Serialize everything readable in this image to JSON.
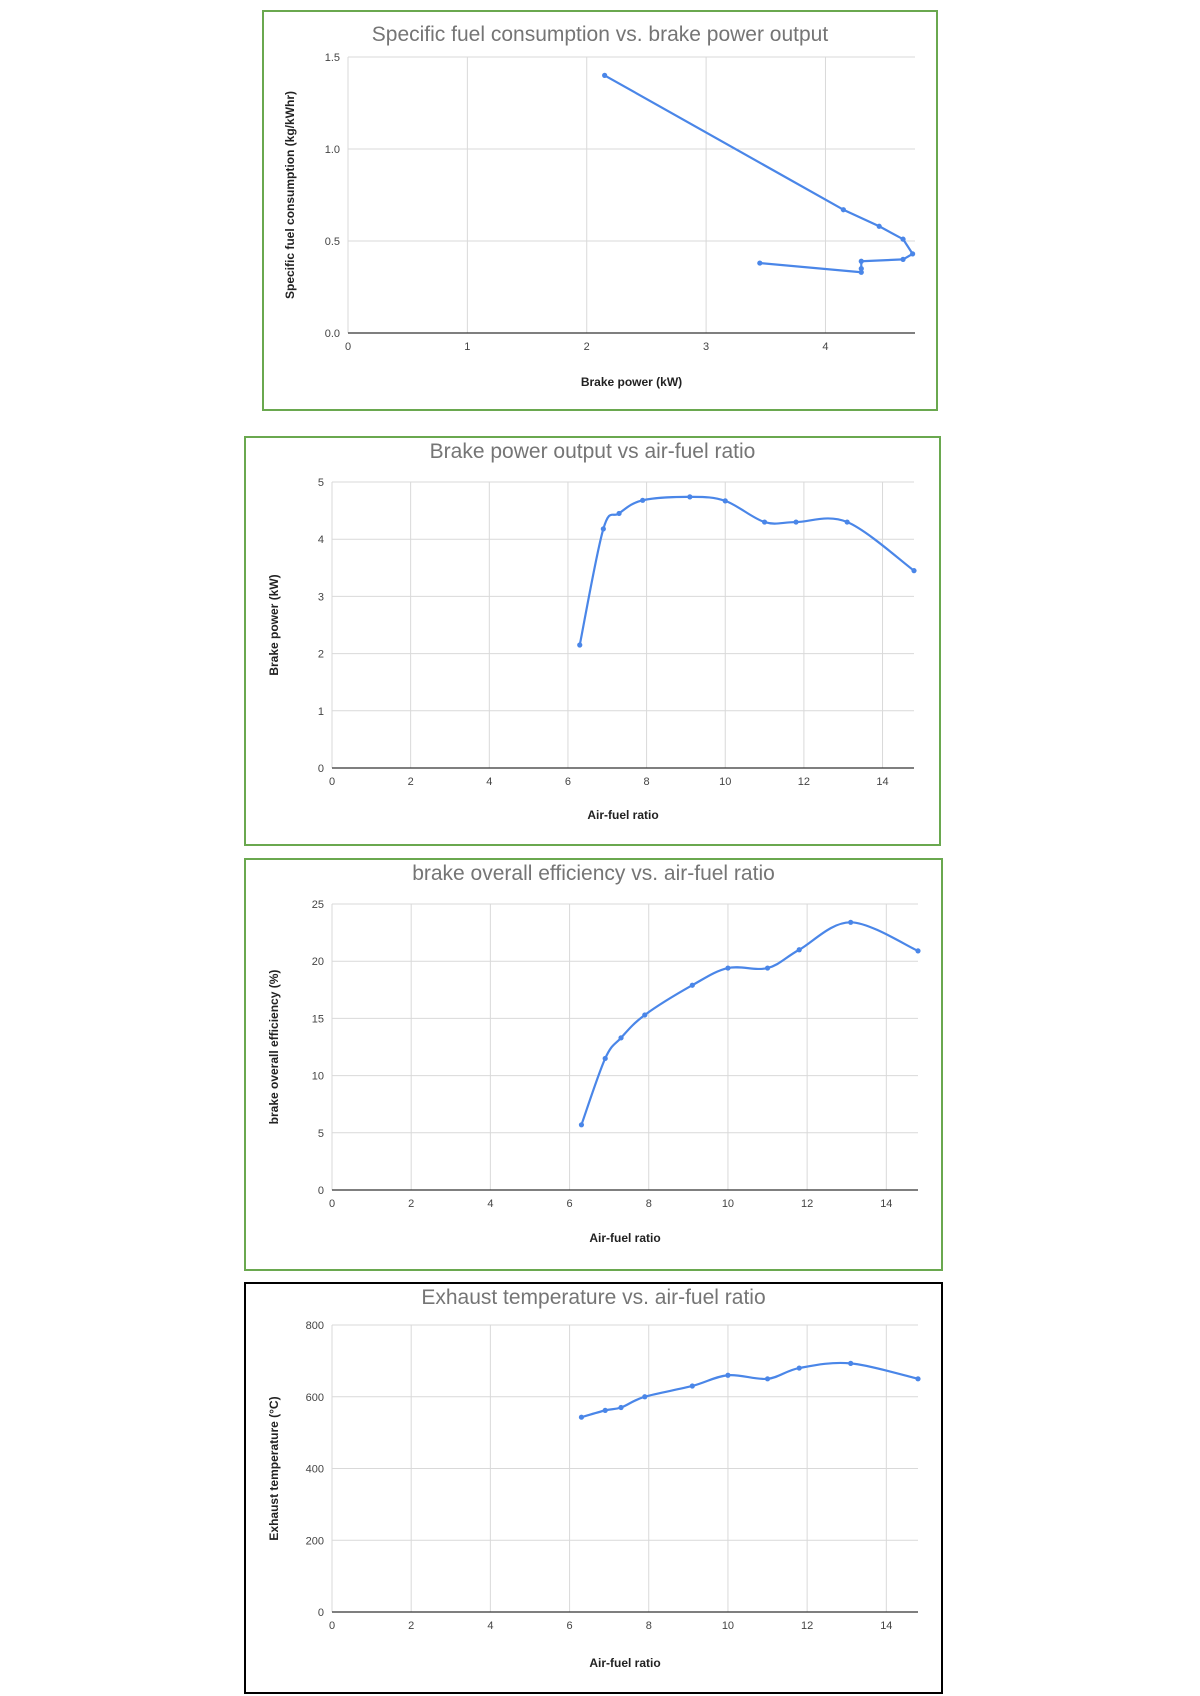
{
  "colors": {
    "series": "#4a86e8",
    "grid": "#d9d9d9",
    "frame_green": "#6aa84f",
    "frame_black": "#000000",
    "title": "#757575"
  },
  "chart_data": [
    {
      "type": "line",
      "title": "Specific fuel consumption vs. brake power output",
      "xlabel": "Brake power (kW)",
      "ylabel": "Specific fuel consumption (kg/kWhr)",
      "xlim": [
        0,
        4.75
      ],
      "ylim": [
        0,
        1.5
      ],
      "xticks": [
        0,
        1,
        2,
        3,
        4
      ],
      "yticks": [
        0,
        0.5,
        1,
        1.5
      ],
      "ytick_labels": [
        "0.0",
        "0.5",
        "1.0",
        "1.5"
      ],
      "smooth": false,
      "grid": true,
      "series": [
        {
          "x": [
            2.15,
            4.15,
            4.45,
            4.65,
            4.73,
            4.65,
            4.3,
            4.3,
            4.3,
            3.45
          ],
          "y": [
            1.4,
            0.67,
            0.58,
            0.51,
            0.43,
            0.4,
            0.39,
            0.35,
            0.33,
            0.38
          ]
        }
      ]
    },
    {
      "type": "line",
      "title": "Brake power output vs air-fuel ratio",
      "xlabel": "Air-fuel ratio",
      "ylabel": "Brake power (kW)",
      "xlim": [
        0,
        14.8
      ],
      "ylim": [
        0,
        5
      ],
      "xticks": [
        0,
        2,
        4,
        6,
        8,
        10,
        12,
        14
      ],
      "yticks": [
        0,
        1,
        2,
        3,
        4,
        5
      ],
      "smooth": true,
      "grid": true,
      "series": [
        {
          "x": [
            6.3,
            6.9,
            7.3,
            7.9,
            9.1,
            10.0,
            11.0,
            11.8,
            13.1,
            14.8
          ],
          "y": [
            2.15,
            4.18,
            4.45,
            4.68,
            4.74,
            4.67,
            4.3,
            4.3,
            4.3,
            3.45
          ]
        }
      ]
    },
    {
      "type": "line",
      "title": "brake overall efficiency vs. air-fuel ratio",
      "xlabel": "Air-fuel ratio",
      "ylabel": "brake overall efficiency (%)",
      "xlim": [
        0,
        14.8
      ],
      "ylim": [
        0,
        25
      ],
      "xticks": [
        0,
        2,
        4,
        6,
        8,
        10,
        12,
        14
      ],
      "yticks": [
        0,
        5,
        10,
        15,
        20,
        25
      ],
      "smooth": true,
      "grid": true,
      "series": [
        {
          "x": [
            6.3,
            6.9,
            7.3,
            7.9,
            9.1,
            10.0,
            11.0,
            11.8,
            13.1,
            14.8
          ],
          "y": [
            5.7,
            11.5,
            13.3,
            15.3,
            17.9,
            19.4,
            19.4,
            21.0,
            23.4,
            20.9
          ]
        }
      ]
    },
    {
      "type": "line",
      "title": "Exhaust temperature vs. air-fuel ratio",
      "xlabel": "Air-fuel ratio",
      "ylabel": "Exhaust temperature (°C)",
      "xlim": [
        0,
        14.8
      ],
      "ylim": [
        0,
        800
      ],
      "xticks": [
        0,
        2,
        4,
        6,
        8,
        10,
        12,
        14
      ],
      "yticks": [
        0,
        200,
        400,
        600,
        800
      ],
      "smooth": true,
      "grid": true,
      "series": [
        {
          "x": [
            6.3,
            6.9,
            7.3,
            7.9,
            9.1,
            10.0,
            11.0,
            11.8,
            13.1,
            14.8
          ],
          "y": [
            543,
            562,
            570,
            600,
            630,
            660,
            650,
            680,
            693,
            650
          ]
        }
      ]
    }
  ]
}
